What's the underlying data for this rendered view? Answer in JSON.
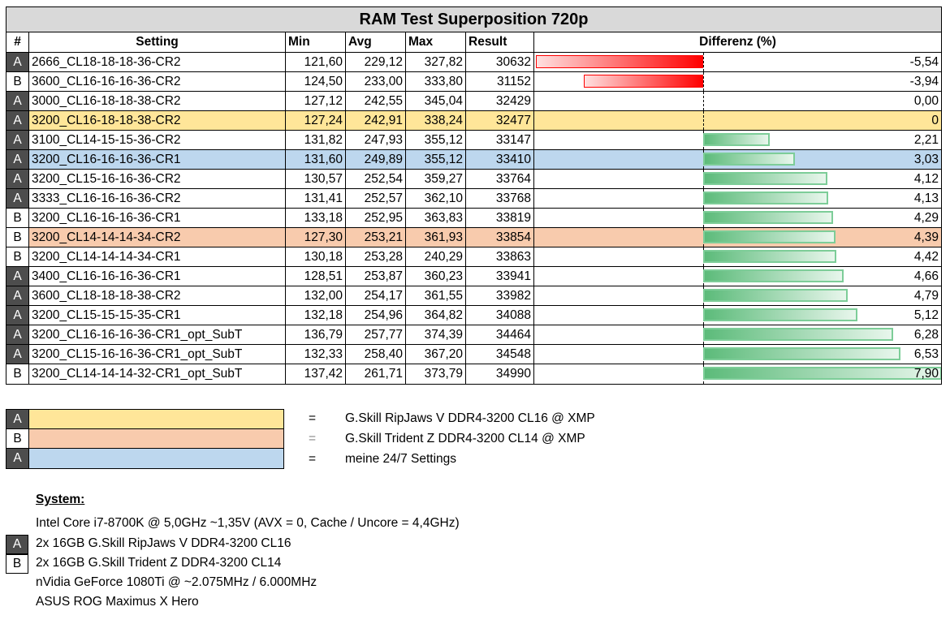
{
  "title": "RAM Test Superposition 720p",
  "headers": {
    "id": "#",
    "setting": "Setting",
    "min": "Min",
    "avg": "Avg",
    "max": "Max",
    "result": "Result",
    "diff": "Differenz (%)"
  },
  "rows": [
    {
      "id": "A",
      "setting": "2666_CL18-18-18-36-CR2",
      "min": "121,60",
      "avg": "229,12",
      "max": "327,82",
      "result": "30632",
      "diff": "-5,54",
      "diff_value": -5.54,
      "highlight": ""
    },
    {
      "id": "B",
      "setting": "3600_CL16-16-16-36-CR2",
      "min": "124,50",
      "avg": "233,00",
      "max": "333,80",
      "result": "31152",
      "diff": "-3,94",
      "diff_value": -3.94,
      "highlight": ""
    },
    {
      "id": "A",
      "setting": "3000_CL16-18-18-38-CR2",
      "min": "127,12",
      "avg": "242,55",
      "max": "345,04",
      "result": "32429",
      "diff": "0,00",
      "diff_value": 0,
      "highlight": ""
    },
    {
      "id": "A",
      "setting": "3200_CL16-18-18-38-CR2",
      "min": "127,24",
      "avg": "242,91",
      "max": "338,24",
      "result": "32477",
      "diff": "0",
      "diff_value": 0,
      "highlight": "yellow"
    },
    {
      "id": "A",
      "setting": "3100_CL14-15-15-36-CR2",
      "min": "131,82",
      "avg": "247,93",
      "max": "355,12",
      "result": "33147",
      "diff": "2,21",
      "diff_value": 2.21,
      "highlight": ""
    },
    {
      "id": "A",
      "setting": "3200_CL16-16-16-36-CR1",
      "min": "131,60",
      "avg": "249,89",
      "max": "355,12",
      "result": "33410",
      "diff": "3,03",
      "diff_value": 3.03,
      "highlight": "blue"
    },
    {
      "id": "A",
      "setting": "3200_CL15-16-16-36-CR2",
      "min": "130,57",
      "avg": "252,54",
      "max": "359,27",
      "result": "33764",
      "diff": "4,12",
      "diff_value": 4.12,
      "highlight": ""
    },
    {
      "id": "A",
      "setting": "3333_CL16-16-16-36-CR2",
      "min": "131,41",
      "avg": "252,57",
      "max": "362,10",
      "result": "33768",
      "diff": "4,13",
      "diff_value": 4.13,
      "highlight": ""
    },
    {
      "id": "B",
      "setting": "3200_CL16-16-16-36-CR1",
      "min": "133,18",
      "avg": "252,95",
      "max": "363,83",
      "result": "33819",
      "diff": "4,29",
      "diff_value": 4.29,
      "highlight": ""
    },
    {
      "id": "B",
      "setting": "3200_CL14-14-14-34-CR2",
      "min": "127,30",
      "avg": "253,21",
      "max": "361,93",
      "result": "33854",
      "diff": "4,39",
      "diff_value": 4.39,
      "highlight": "orange"
    },
    {
      "id": "B",
      "setting": "3200_CL14-14-14-34-CR1",
      "min": "130,18",
      "avg": "253,28",
      "max": "240,29",
      "result": "33863",
      "diff": "4,42",
      "diff_value": 4.42,
      "highlight": ""
    },
    {
      "id": "A",
      "setting": "3400_CL16-16-16-36-CR1",
      "min": "128,51",
      "avg": "253,87",
      "max": "360,23",
      "result": "33941",
      "diff": "4,66",
      "diff_value": 4.66,
      "highlight": ""
    },
    {
      "id": "A",
      "setting": "3600_CL18-18-18-38-CR2",
      "min": "132,00",
      "avg": "254,17",
      "max": "361,55",
      "result": "33982",
      "diff": "4,79",
      "diff_value": 4.79,
      "highlight": ""
    },
    {
      "id": "A",
      "setting": "3200_CL15-15-15-35-CR1",
      "min": "132,18",
      "avg": "254,96",
      "max": "364,82",
      "result": "34088",
      "diff": "5,12",
      "diff_value": 5.12,
      "highlight": ""
    },
    {
      "id": "A",
      "setting": "3200_CL16-16-16-36-CR1_opt_SubT",
      "min": "136,79",
      "avg": "257,77",
      "max": "374,39",
      "result": "34464",
      "diff": "6,28",
      "diff_value": 6.28,
      "highlight": ""
    },
    {
      "id": "A",
      "setting": "3200_CL15-16-16-36-CR1_opt_SubT",
      "min": "132,33",
      "avg": "258,40",
      "max": "367,20",
      "result": "34548",
      "diff": "6,53",
      "diff_value": 6.53,
      "highlight": ""
    },
    {
      "id": "B",
      "setting": "3200_CL14-14-14-32-CR1_opt_SubT",
      "min": "137,42",
      "avg": "261,71",
      "max": "373,79",
      "result": "34990",
      "diff": "7,90",
      "diff_value": 7.9,
      "highlight": ""
    }
  ],
  "legend": [
    {
      "id": "A",
      "color": "#ffe699",
      "eq": "=",
      "text": "G.Skill RipJaws V DDR4-3200 CL16 @ XMP"
    },
    {
      "id": "B",
      "color": "#f8cbad",
      "eq": "=",
      "text": "G.Skill  Trident Z DDR4-3200 CL14 @ XMP"
    },
    {
      "id": "A",
      "color": "#bdd7ee",
      "eq": "=",
      "text": "meine 24/7 Settings"
    }
  ],
  "system": {
    "title": "System:",
    "cpu": "Intel Core i7-8700K @ 5,0GHz ~1,35V (AVX = 0, Cache / Uncore = 4,4GHz)",
    "ram_a_badge": "A",
    "ram_a": "2x 16GB G.Skill RipJaws V DDR4-3200 CL16",
    "ram_b_badge": "B",
    "ram_b": "2x 16GB G.Skill  Trident Z DDR4-3200 CL14",
    "gpu": "nVidia GeForce 1080Ti @ ~2.075MHz / 6.000MHz",
    "board": "ASUS ROG Maximus X Hero"
  },
  "colors": {
    "title_bg": "#d9d9d9",
    "id_a_bg": "#4d4d4d",
    "negative_bar": "#ff0000",
    "positive_bar": "#5cbb7a",
    "highlight_yellow": "#ffe699",
    "highlight_orange": "#f8cbad",
    "highlight_blue": "#bdd7ee"
  },
  "chart_data": {
    "type": "table",
    "title": "RAM Test Superposition 720p",
    "columns": [
      "#",
      "Setting",
      "Min",
      "Avg",
      "Max",
      "Result",
      "Differenz (%)"
    ],
    "categories": [
      "2666_CL18-18-18-36-CR2",
      "3600_CL16-16-16-36-CR2",
      "3000_CL16-18-18-38-CR2",
      "3200_CL16-18-18-38-CR2",
      "3100_CL14-15-15-36-CR2",
      "3200_CL16-16-16-36-CR1",
      "3200_CL15-16-16-36-CR2",
      "3333_CL16-16-16-36-CR2",
      "3200_CL16-16-16-36-CR1",
      "3200_CL14-14-14-34-CR2",
      "3200_CL14-14-14-34-CR1",
      "3400_CL16-16-16-36-CR1",
      "3600_CL18-18-18-38-CR2",
      "3200_CL15-15-15-35-CR1",
      "3200_CL16-16-16-36-CR1_opt_SubT",
      "3200_CL15-16-16-36-CR1_opt_SubT",
      "3200_CL14-14-14-32-CR1_opt_SubT"
    ],
    "series": [
      {
        "name": "Min",
        "values": [
          121.6,
          124.5,
          127.12,
          127.24,
          131.82,
          131.6,
          130.57,
          131.41,
          133.18,
          127.3,
          130.18,
          128.51,
          132.0,
          132.18,
          136.79,
          132.33,
          137.42
        ]
      },
      {
        "name": "Avg",
        "values": [
          229.12,
          233.0,
          242.55,
          242.91,
          247.93,
          249.89,
          252.54,
          252.57,
          252.95,
          253.21,
          253.28,
          253.87,
          254.17,
          254.96,
          257.77,
          258.4,
          261.71
        ]
      },
      {
        "name": "Max",
        "values": [
          327.82,
          333.8,
          345.04,
          338.24,
          355.12,
          355.12,
          359.27,
          362.1,
          363.83,
          361.93,
          240.29,
          360.23,
          361.55,
          364.82,
          374.39,
          367.2,
          373.79
        ]
      },
      {
        "name": "Result",
        "values": [
          30632,
          31152,
          32429,
          32477,
          33147,
          33410,
          33764,
          33768,
          33819,
          33854,
          33863,
          33941,
          33982,
          34088,
          34464,
          34548,
          34990
        ]
      },
      {
        "name": "Differenz (%)",
        "values": [
          -5.54,
          -3.94,
          0.0,
          0,
          2.21,
          3.03,
          4.12,
          4.13,
          4.29,
          4.39,
          4.42,
          4.66,
          4.79,
          5.12,
          6.28,
          6.53,
          7.9
        ]
      }
    ],
    "kit": [
      "A",
      "B",
      "A",
      "A",
      "A",
      "A",
      "A",
      "A",
      "B",
      "B",
      "B",
      "A",
      "A",
      "A",
      "A",
      "A",
      "B"
    ],
    "bar_axis_range": [
      -5.54,
      7.9
    ]
  }
}
